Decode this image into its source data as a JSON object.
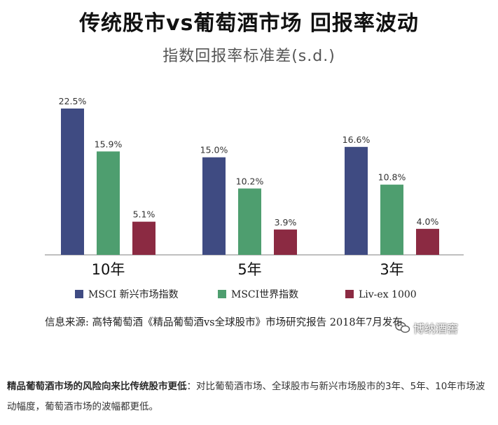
{
  "title": "传统股市vs葡萄酒市场 回报率波动",
  "subtitle": "指数回报率标准差(s.d.)",
  "source": "信息来源: 高特葡萄酒《精品葡萄酒vs全球股市》市场研究报告 2018年7月发布",
  "watermark": "博纳酒窖",
  "caption": {
    "bold": "精品葡萄酒市场的风险向来比传统股市更低",
    "text": "：对比葡萄酒市场、全球股市与新兴市场股市的3年、5年、10年市场波动幅度，葡萄酒市场的波幅都更低。"
  },
  "colors": {
    "series1": "#3f4b82",
    "series2": "#4e9e6f",
    "series3": "#8b2a42",
    "axis": "#999999"
  },
  "chart_data": {
    "type": "bar",
    "categories": [
      "10年",
      "5年",
      "3年"
    ],
    "series": [
      {
        "name": "MSCI 新兴市场指数",
        "values": [
          22.5,
          15.0,
          16.6
        ],
        "labels": [
          "22.5%",
          "15.0%",
          "16.6%"
        ]
      },
      {
        "name": "MSCI世界指数",
        "values": [
          15.9,
          10.2,
          10.8
        ],
        "labels": [
          "15.9%",
          "10.2%",
          "10.8%"
        ]
      },
      {
        "name": "Liv-ex 1000",
        "values": [
          5.1,
          3.9,
          4.0
        ],
        "labels": [
          "5.1%",
          "3.9%",
          "4.0%"
        ]
      }
    ],
    "ylim": [
      0,
      22.5
    ],
    "legend": "bottom",
    "grid": false
  }
}
